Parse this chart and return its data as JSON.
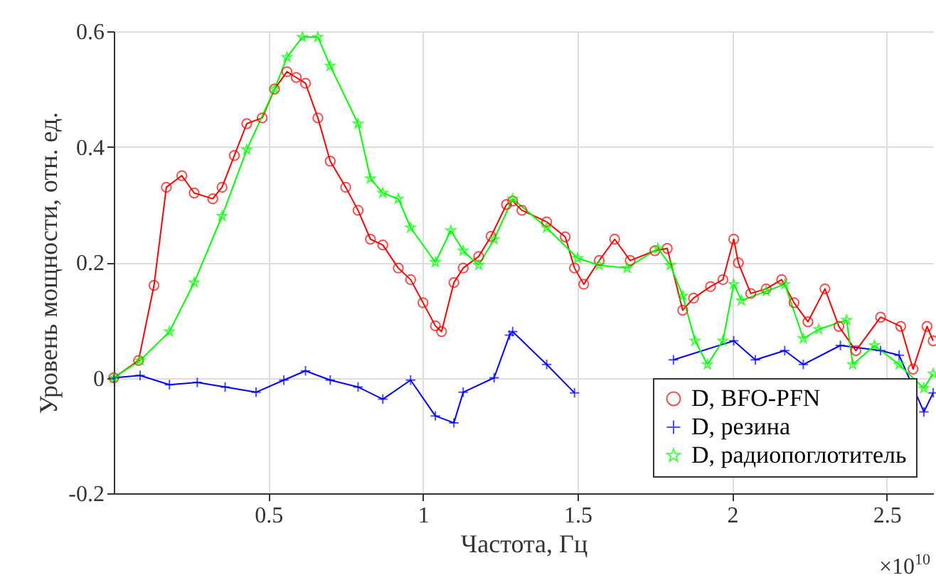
{
  "chart_data": {
    "type": "line",
    "xlabel": "Частота, Гц",
    "ylabel": "Уровень мощности, отн. ед.",
    "annotations": [
      "×10$^{10}$"
    ],
    "xlim": [
      0,
      2.65
    ],
    "xticks": [
      0.5,
      1,
      1.5,
      2,
      2.5
    ],
    "ylim": [
      -0.2,
      0.6
    ],
    "yticks": [
      -0.2,
      0,
      0.2,
      0.4,
      0.6
    ],
    "grid": true,
    "legend": "bottom right",
    "series": [
      {
        "name": "D, BFO-PFN",
        "color": "#ff0000",
        "marker": "circle",
        "x": [
          0,
          0.08,
          0.13,
          0.17,
          0.22,
          0.26,
          0.32,
          0.35,
          0.39,
          0.43,
          0.48,
          0.52,
          0.56,
          0.59,
          0.62,
          0.66,
          0.7,
          0.75,
          0.79,
          0.83,
          0.87,
          0.92,
          0.96,
          1.0,
          1.04,
          1.06,
          1.1,
          1.13,
          1.18,
          1.22,
          1.27,
          1.29,
          1.32,
          1.4,
          1.46,
          1.49,
          1.52,
          1.57,
          1.62,
          1.67,
          1.75,
          1.79,
          1.84,
          1.875,
          1.93,
          1.97,
          2.005,
          2.02,
          2.06,
          2.11,
          2.16,
          2.2,
          2.245,
          2.3,
          2.345,
          2.4,
          2.48,
          2.545,
          2.585,
          2.63,
          2.65
        ],
        "values": [
          0,
          0.03,
          0.16,
          0.33,
          0.35,
          0.32,
          0.31,
          0.33,
          0.385,
          0.44,
          0.45,
          0.5,
          0.53,
          0.52,
          0.51,
          0.45,
          0.375,
          0.33,
          0.29,
          0.24,
          0.23,
          0.19,
          0.17,
          0.13,
          0.09,
          0.08,
          0.165,
          0.19,
          0.21,
          0.245,
          0.3,
          0.306,
          0.29,
          0.27,
          0.244,
          0.19,
          0.162,
          0.203,
          0.24,
          0.203,
          0.22,
          0.224,
          0.117,
          0.138,
          0.158,
          0.17,
          0.24,
          0.199,
          0.146,
          0.154,
          0.17,
          0.13,
          0.097,
          0.154,
          0.089,
          0.047,
          0.105,
          0.089,
          0.015,
          0.089,
          0.064
        ]
      },
      {
        "name": "D, резина",
        "color": "#0000ff",
        "marker": "cross",
        "x": [
          0,
          0.085,
          0.18,
          0.27,
          0.36,
          0.46,
          0.55,
          0.62,
          0.7,
          0.79,
          0.87,
          0.96,
          1.04,
          1.1,
          1.13,
          1.23,
          1.28,
          1.29,
          1.4,
          1.49,
          1.65,
          1.81,
          2.005,
          2.075,
          2.17,
          2.23,
          2.35,
          2.48,
          2.54,
          2.62,
          2.65
        ],
        "values": [
          0,
          0.004,
          -0.012,
          -0.008,
          -0.016,
          -0.025,
          -0.004,
          0.012,
          -0.004,
          -0.016,
          -0.037,
          -0.004,
          -0.066,
          -0.078,
          -0.025,
          0,
          0.074,
          0.08,
          0.023,
          -0.026,
          null,
          0.031,
          0.064,
          0.031,
          0.047,
          0.023,
          0.056,
          0.047,
          0.039,
          -0.059,
          -0.026
        ]
      },
      {
        "name": "D, радиопоглотитель",
        "color": "#00ff00",
        "marker": "star",
        "x": [
          0,
          0.085,
          0.18,
          0.26,
          0.35,
          0.43,
          0.52,
          0.56,
          0.61,
          0.66,
          0.7,
          0.79,
          0.83,
          0.87,
          0.92,
          0.96,
          1.04,
          1.09,
          1.13,
          1.18,
          1.23,
          1.29,
          1.4,
          1.5,
          1.57,
          1.66,
          1.76,
          1.8,
          1.84,
          1.88,
          1.92,
          1.97,
          2.005,
          2.03,
          2.11,
          2.17,
          2.23,
          2.28,
          2.37,
          2.39,
          2.46,
          2.54,
          2.62,
          2.65
        ],
        "values": [
          0,
          0.03,
          0.08,
          0.165,
          0.28,
          0.395,
          0.5,
          0.555,
          0.59,
          0.59,
          0.54,
          0.44,
          0.345,
          0.32,
          0.31,
          0.26,
          0.2,
          0.255,
          0.22,
          0.195,
          0.24,
          0.31,
          0.26,
          0.207,
          0.195,
          0.19,
          0.224,
          0.195,
          0.142,
          0.064,
          0.023,
          0.064,
          0.162,
          0.134,
          0.15,
          0.162,
          0.068,
          0.084,
          0.1,
          0.023,
          0.056,
          0.023,
          -0.018,
          0.007
        ]
      }
    ]
  }
}
